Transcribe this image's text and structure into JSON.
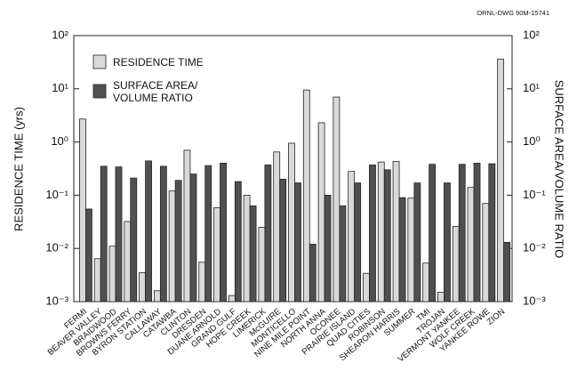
{
  "chart_data": {
    "type": "bar",
    "note": "ORNL-DWG 90M-15741",
    "y_label": "RESIDENCE TIME (yrs)",
    "y2_label": "SURFACE AREA/VOLUME RATIO",
    "log": true,
    "legend": "top-left",
    "categories": [
      "FERMI",
      "BEAVER VALLEY",
      "BRAIDWOOD",
      "BROWNS FERRY",
      "BYRON STATION",
      "CALLAWAY",
      "CATAWBA",
      "CLINTON",
      "DRESDEN",
      "DUANE ARNOLD",
      "GRAND GULF",
      "HOPE CREEK",
      "LIMERICK",
      "McGUIRE",
      "MONTICELLO",
      "NINE MILE POINT",
      "NORTH ANNA",
      "OCONEE",
      "PRAIRIE ISLAND",
      "QUAD CITIES",
      "ROBINSON",
      "SHEARON HARRIS",
      "SUMMER",
      "TMI",
      "TROJAN",
      "VERMONT YANKEE",
      "WOLF CREEK",
      "YANKEE ROWE",
      "ZION"
    ],
    "series": [
      {
        "name": "RESIDENCE TIME",
        "color": "#d9d9d9",
        "values": [
          2.7,
          0.0064,
          0.011,
          0.032,
          0.0035,
          0.0016,
          0.12,
          0.7,
          0.0055,
          0.058,
          0.0013,
          0.1,
          0.025,
          0.65,
          0.95,
          9.5,
          2.3,
          7,
          0.28,
          0.0034,
          0.42,
          0.43,
          0.088,
          0.0053,
          0.0015,
          0.026,
          0.14,
          0.07,
          36
        ]
      },
      {
        "name": "SURFACE AREA/ VOLUME RATIO",
        "color": "#505050",
        "axis": "y2",
        "values": [
          0.055,
          0.35,
          0.34,
          0.21,
          0.44,
          0.35,
          0.19,
          0.25,
          0.36,
          0.4,
          0.18,
          0.063,
          0.37,
          0.2,
          0.17,
          0.012,
          0.1,
          0.063,
          0.17,
          0.37,
          0.3,
          0.09,
          0.17,
          0.38,
          0.17,
          0.38,
          0.4,
          0.39,
          0.013
        ]
      }
    ],
    "ylim": [
      0.001,
      100
    ],
    "yticks": [
      {
        "value": 0.001,
        "label": "10⁻³"
      },
      {
        "value": 0.01,
        "label": "10⁻²"
      },
      {
        "value": 0.1,
        "label": "10⁻¹"
      },
      {
        "value": 1,
        "label": "10⁰"
      },
      {
        "value": 10,
        "label": "10¹"
      },
      {
        "value": 100,
        "label": "10²"
      }
    ],
    "y2lim": [
      0.001,
      100
    ],
    "y2ticks": [
      {
        "value": 0.001,
        "label": "10⁻³"
      },
      {
        "value": 0.01,
        "label": "10⁻²"
      },
      {
        "value": 0.1,
        "label": "10⁻¹"
      },
      {
        "value": 1,
        "label": "10⁰"
      },
      {
        "value": 10,
        "label": "10¹"
      },
      {
        "value": 100,
        "label": "10²"
      }
    ]
  }
}
